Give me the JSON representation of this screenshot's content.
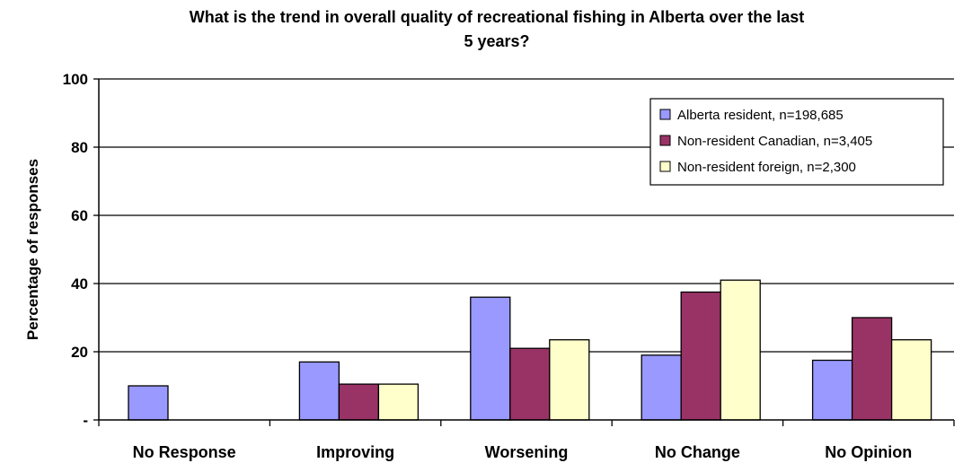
{
  "chart_data": {
    "type": "bar",
    "title_lines": [
      "What is the trend in overall quality of recreational fishing in Alberta over the last",
      "5 years?"
    ],
    "ylabel": "Percentage of responses",
    "xlabel": "",
    "ylim": [
      0,
      100
    ],
    "yticks": [
      {
        "value": 0,
        "label": "-"
      },
      {
        "value": 20,
        "label": "20"
      },
      {
        "value": 40,
        "label": "40"
      },
      {
        "value": 60,
        "label": "60"
      },
      {
        "value": 80,
        "label": "80"
      },
      {
        "value": 100,
        "label": "100"
      }
    ],
    "grid": true,
    "legend_position": "top-right",
    "categories": [
      "No Response",
      "Improving",
      "Worsening",
      "No Change",
      "No Opinion"
    ],
    "series": [
      {
        "name": "Alberta resident, n=198,685",
        "color": "#9999ff",
        "values": [
          10,
          17,
          36,
          19,
          17.5
        ]
      },
      {
        "name": "Non-resident Canadian, n=3,405",
        "color": "#993366",
        "values": [
          0,
          10.5,
          21,
          37.5,
          30
        ]
      },
      {
        "name": "Non-resident foreign, n=2,300",
        "color": "#ffffcc",
        "values": [
          0,
          10.5,
          23.5,
          41,
          23.5
        ]
      }
    ]
  }
}
